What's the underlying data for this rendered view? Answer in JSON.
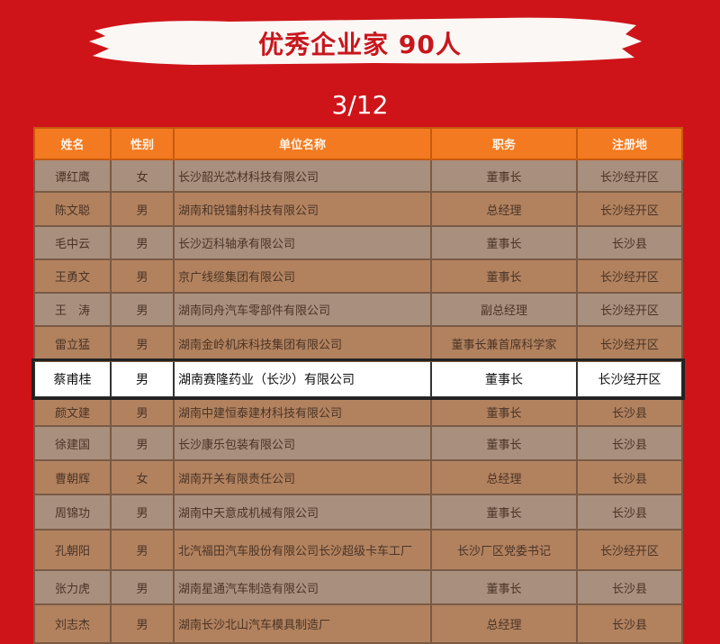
{
  "title": "优秀企业家 90人",
  "pagination": "3/12",
  "colors": {
    "background": "#cf1419",
    "header": "#f37a20",
    "highlight": "#ffffff"
  },
  "table": {
    "headers": [
      "姓名",
      "性别",
      "单位名称",
      "职务",
      "注册地"
    ],
    "rows": [
      [
        "谭红鹰",
        "女",
        "长沙韶光芯材科技有限公司",
        "董事长",
        "长沙经开区"
      ],
      [
        "陈文聪",
        "男",
        "湖南和锐镭射科技有限公司",
        "总经理",
        "长沙经开区"
      ],
      [
        "毛中云",
        "男",
        "长沙迈科轴承有限公司",
        "董事长",
        "长沙县"
      ],
      [
        "王勇文",
        "男",
        "京广线缆集团有限公司",
        "董事长",
        "长沙经开区"
      ],
      [
        "王　涛",
        "男",
        "湖南同舟汽车零部件有限公司",
        "副总经理",
        "长沙经开区"
      ],
      [
        "雷立猛",
        "男",
        "湖南金岭机床科技集团有限公司",
        "董事长兼首席科学家",
        "长沙经开区"
      ],
      [
        "蔡甫桂",
        "男",
        "湖南赛隆药业（长沙）有限公司",
        "董事长",
        "长沙经开区"
      ],
      [
        "颜文建",
        "男",
        "湖南中建恒泰建材科技有限公司",
        "董事长",
        "长沙县"
      ],
      [
        "徐建国",
        "男",
        "长沙康乐包装有限公司",
        "董事长",
        "长沙县"
      ],
      [
        "曹朝辉",
        "女",
        "湖南开关有限责任公司",
        "总经理",
        "长沙县"
      ],
      [
        "周锦功",
        "男",
        "湖南中天意成机械有限公司",
        "董事长",
        "长沙县"
      ],
      [
        "孔朝阳",
        "男",
        "北汽福田汽车股份有限公司长沙超级卡车工厂",
        "长沙厂区党委书记",
        "长沙经开区"
      ],
      [
        "张力虎",
        "男",
        "湖南星通汽车制造有限公司",
        "董事长",
        "长沙县"
      ],
      [
        "刘志杰",
        "男",
        "湖南长沙北山汽车模具制造厂",
        "总经理",
        "长沙县"
      ]
    ],
    "highlighted_row": 6
  }
}
